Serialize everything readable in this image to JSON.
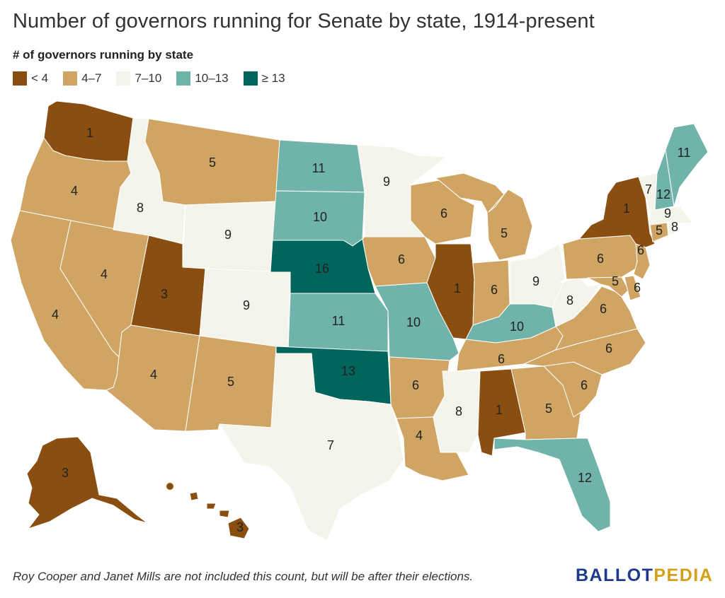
{
  "title": "Number of governors running for Senate by state, 1914-present",
  "legend": {
    "heading": "# of governors running by state",
    "items": [
      {
        "label": "< 4",
        "color": "#8a4f10"
      },
      {
        "label": "4–7",
        "color": "#d0a462"
      },
      {
        "label": "7–10",
        "color": "#f5f4ea"
      },
      {
        "label": "10–13",
        "color": "#6fb3aa"
      },
      {
        "label": "≥ 13",
        "color": "#00665b"
      }
    ]
  },
  "states": [
    {
      "id": "WA",
      "value": 1
    },
    {
      "id": "OR",
      "value": 4
    },
    {
      "id": "CA",
      "value": 4
    },
    {
      "id": "ID",
      "value": 8
    },
    {
      "id": "NV",
      "value": 4
    },
    {
      "id": "MT",
      "value": 5
    },
    {
      "id": "WY",
      "value": 9
    },
    {
      "id": "UT",
      "value": 3
    },
    {
      "id": "AZ",
      "value": 4
    },
    {
      "id": "CO",
      "value": 9
    },
    {
      "id": "NM",
      "value": 5
    },
    {
      "id": "ND",
      "value": 11
    },
    {
      "id": "SD",
      "value": 10
    },
    {
      "id": "NE",
      "value": 16
    },
    {
      "id": "KS",
      "value": 11
    },
    {
      "id": "OK",
      "value": 13
    },
    {
      "id": "TX",
      "value": 7
    },
    {
      "id": "MN",
      "value": 9
    },
    {
      "id": "IA",
      "value": 6
    },
    {
      "id": "MO",
      "value": 10
    },
    {
      "id": "AR",
      "value": 6
    },
    {
      "id": "LA",
      "value": 4
    },
    {
      "id": "WI",
      "value": 6
    },
    {
      "id": "IL",
      "value": 1
    },
    {
      "id": "MI",
      "value": 5
    },
    {
      "id": "IN",
      "value": 6
    },
    {
      "id": "OH",
      "value": 9
    },
    {
      "id": "KY",
      "value": 10
    },
    {
      "id": "TN",
      "value": 6
    },
    {
      "id": "MS",
      "value": 8
    },
    {
      "id": "AL",
      "value": 1
    },
    {
      "id": "GA",
      "value": 5
    },
    {
      "id": "FL",
      "value": 12
    },
    {
      "id": "SC",
      "value": 6
    },
    {
      "id": "NC",
      "value": 6
    },
    {
      "id": "VA",
      "value": 6
    },
    {
      "id": "WV",
      "value": 8
    },
    {
      "id": "PA",
      "value": 6
    },
    {
      "id": "NY",
      "value": 1
    },
    {
      "id": "VT",
      "value": 7
    },
    {
      "id": "NH",
      "value": 12
    },
    {
      "id": "ME",
      "value": 11
    },
    {
      "id": "MA",
      "value": 9
    },
    {
      "id": "CT",
      "value": 5
    },
    {
      "id": "RI",
      "value": 8
    },
    {
      "id": "NJ",
      "value": 6
    },
    {
      "id": "DE",
      "value": 6
    },
    {
      "id": "MD",
      "value": 5
    },
    {
      "id": "AK",
      "value": 3
    },
    {
      "id": "HI",
      "value": 3
    }
  ],
  "footnote": "Roy Cooper and Janet Mills are not included this count, but will be after their elections.",
  "logo": {
    "part1": "BALLOT",
    "part2": "PEDIA",
    "color1": "#1e3a8a",
    "color2": "#d4a017"
  }
}
